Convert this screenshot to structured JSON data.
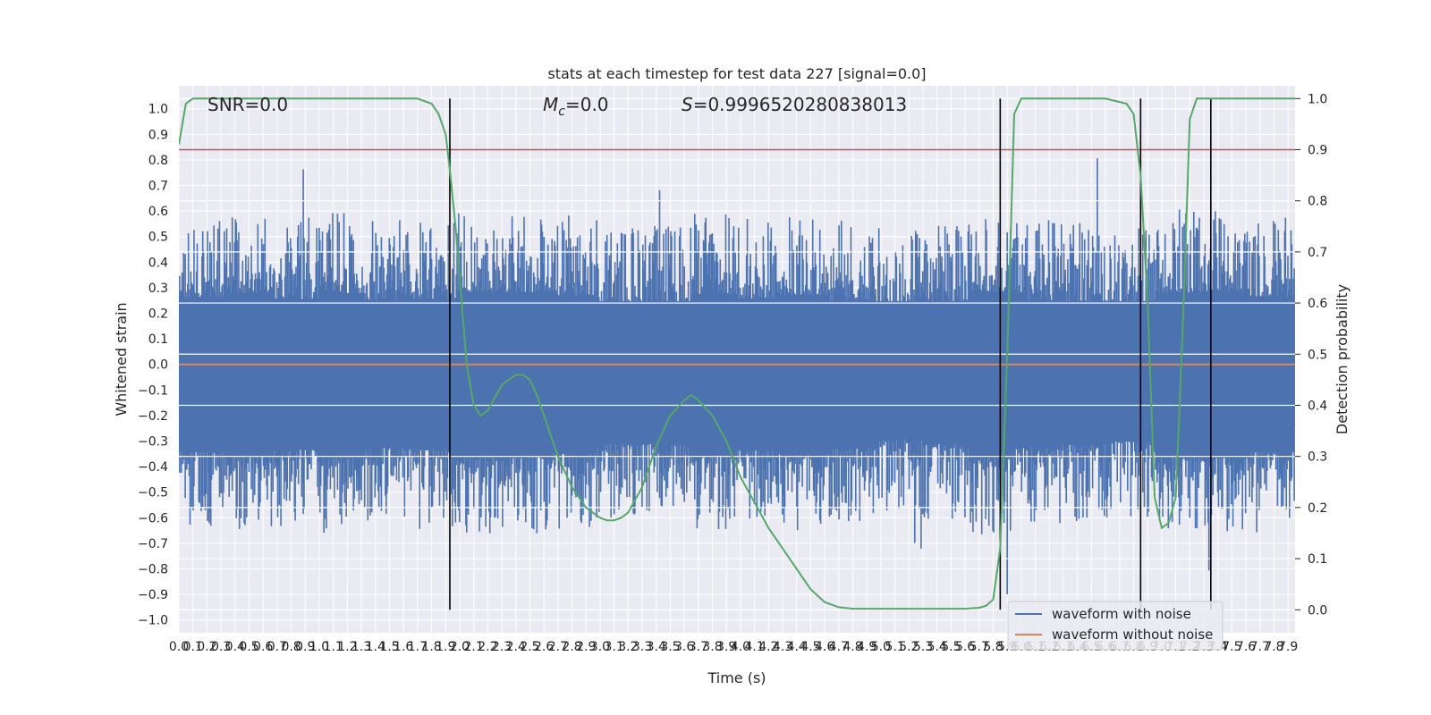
{
  "chart_data": {
    "type": "line",
    "title": "stats at each timestep for test data 227 [signal=0.0]",
    "xlabel": "Time (s)",
    "ylabel": "Whitened strain",
    "y2label": "Detection probability",
    "xlim": [
      0.0,
      7.95
    ],
    "ylim": [
      -1.05,
      1.09
    ],
    "y2lim": [
      -0.045,
      1.025
    ],
    "x_ticks": [
      "0.0",
      "0.1",
      "0.2",
      "0.3",
      "0.4",
      "0.5",
      "0.6",
      "0.7",
      "0.8",
      "0.9",
      "1.0",
      "1.1",
      "1.2",
      "1.3",
      "1.4",
      "1.5",
      "1.6",
      "1.7",
      "1.8",
      "1.9",
      "2.0",
      "2.1",
      "2.2",
      "2.3",
      "2.4",
      "2.5",
      "2.6",
      "2.7",
      "2.8",
      "2.9",
      "3.0",
      "3.1",
      "3.2",
      "3.3",
      "3.4",
      "3.5",
      "3.6",
      "3.7",
      "3.8",
      "3.9",
      "4.0",
      "4.1",
      "4.2",
      "4.3",
      "4.4",
      "4.5",
      "4.6",
      "4.7",
      "4.8",
      "4.9",
      "5.0",
      "5.1",
      "5.2",
      "5.3",
      "5.4",
      "5.5",
      "5.6",
      "5.7",
      "5.8",
      "5.9",
      "6.0",
      "6.1",
      "6.2",
      "6.3",
      "6.4",
      "6.5",
      "6.6",
      "6.7",
      "6.8",
      "6.9",
      "7.0",
      "7.1",
      "7.2",
      "7.3",
      "7.4",
      "7.5",
      "7.6",
      "7.7",
      "7.8",
      "7.9"
    ],
    "y_ticks": [
      "1.0",
      "0.9",
      "0.8",
      "0.7",
      "0.6",
      "0.5",
      "0.4",
      "0.3",
      "0.2",
      "0.1",
      "0.0",
      "−0.1",
      "−0.2",
      "−0.3",
      "−0.4",
      "−0.5",
      "−0.6",
      "−0.7",
      "−0.8",
      "−0.9",
      "−1.0"
    ],
    "y2_ticks": [
      "1.0",
      "0.9",
      "0.8",
      "0.7",
      "0.6",
      "0.5",
      "0.4",
      "0.3",
      "0.2",
      "0.1",
      "0.0"
    ],
    "annotations": {
      "snr": "SNR=0.0",
      "mc_symbol": "M",
      "mc_sub": "c",
      "mc_value": "=0.0",
      "s_symbol": "S",
      "s_value": "=0.9996520280838013"
    },
    "series": [
      {
        "name": "waveform with noise",
        "color": "#4c72b0",
        "envelope_upper": 0.45,
        "envelope_lower": -0.45
      },
      {
        "name": "waveform without noise",
        "color": "#dd8452",
        "values": [
          0.0,
          0.0
        ]
      },
      {
        "color": "#55a868",
        "axis": "right",
        "x": [
          0.0,
          0.05,
          0.1,
          0.2,
          0.5,
          1.0,
          1.5,
          1.7,
          1.75,
          1.8,
          1.85,
          1.9,
          1.93,
          1.97,
          2.0,
          2.05,
          2.1,
          2.15,
          2.2,
          2.3,
          2.4,
          2.45,
          2.5,
          2.55,
          2.6,
          2.7,
          2.8,
          2.9,
          3.0,
          3.05,
          3.1,
          3.15,
          3.2,
          3.3,
          3.4,
          3.5,
          3.6,
          3.65,
          3.7,
          3.8,
          3.9,
          4.0,
          4.2,
          4.4,
          4.5,
          4.6,
          4.7,
          4.8,
          5.0,
          5.4,
          5.6,
          5.7,
          5.75,
          5.8,
          5.85,
          5.9,
          5.95,
          6.0,
          6.2,
          6.6,
          6.75,
          6.8,
          6.85,
          6.9,
          6.95,
          7.0,
          7.05,
          7.1,
          7.15,
          7.2,
          7.25,
          7.3,
          7.35,
          7.4,
          7.45,
          7.5,
          7.6,
          7.95
        ],
        "y": [
          0.91,
          0.99,
          1.0,
          1.0,
          1.0,
          1.0,
          1.0,
          1.0,
          0.995,
          0.99,
          0.97,
          0.93,
          0.86,
          0.75,
          0.65,
          0.48,
          0.4,
          0.38,
          0.39,
          0.44,
          0.46,
          0.46,
          0.45,
          0.42,
          0.38,
          0.3,
          0.24,
          0.2,
          0.18,
          0.175,
          0.175,
          0.18,
          0.19,
          0.24,
          0.32,
          0.38,
          0.41,
          0.42,
          0.41,
          0.38,
          0.33,
          0.26,
          0.16,
          0.08,
          0.04,
          0.015,
          0.005,
          0.002,
          0.002,
          0.002,
          0.002,
          0.004,
          0.008,
          0.02,
          0.12,
          0.5,
          0.97,
          1.0,
          1.0,
          1.0,
          0.99,
          0.97,
          0.85,
          0.6,
          0.22,
          0.16,
          0.17,
          0.22,
          0.55,
          0.96,
          1.0,
          1.0,
          1.0,
          1.0,
          1.0,
          1.0,
          1.0,
          1.0
        ]
      }
    ],
    "threshold_line": {
      "value": 0.9,
      "axis": "right",
      "color": "#c44e52"
    },
    "vertical_lines": [
      1.93,
      5.85,
      6.85,
      7.35
    ],
    "legend_entries": [
      "waveform with noise",
      "waveform without noise"
    ],
    "legend_position": "lower-right",
    "grid": true,
    "colors": {
      "background": "#eaeaf2",
      "grid": "#ffffff",
      "text": "#262626",
      "vlines": "#000000"
    }
  }
}
